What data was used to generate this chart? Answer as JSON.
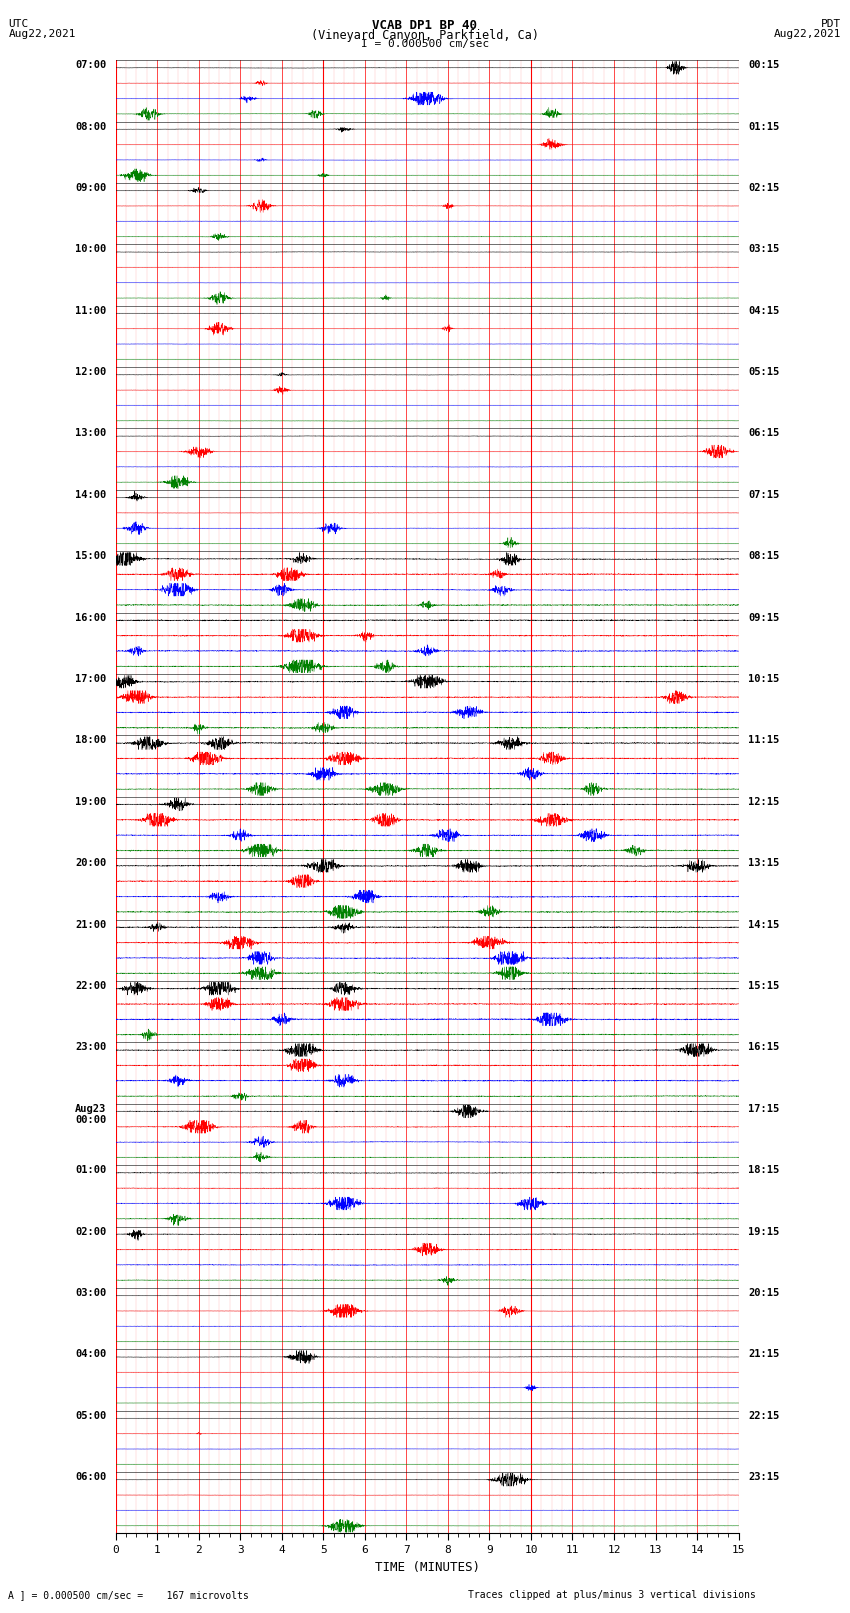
{
  "title_line1": "VCAB DP1 BP 40",
  "title_line2": "(Vineyard Canyon, Parkfield, Ca)",
  "scale_label": "I = 0.000500 cm/sec",
  "left_header_line1": "UTC",
  "left_header_line2": "Aug22,2021",
  "right_header_line1": "PDT",
  "right_header_line2": "Aug22,2021",
  "bottom_label1": "A ] = 0.000500 cm/sec =    167 microvolts",
  "bottom_label2": "Traces clipped at plus/minus 3 vertical divisions",
  "xlabel": "TIME (MINUTES)",
  "bg_color": "#ffffff",
  "trace_colors": [
    "black",
    "red",
    "blue",
    "green"
  ],
  "utc_labels": [
    "07:00",
    "08:00",
    "09:00",
    "10:00",
    "11:00",
    "12:00",
    "13:00",
    "14:00",
    "15:00",
    "16:00",
    "17:00",
    "18:00",
    "19:00",
    "20:00",
    "21:00",
    "22:00",
    "23:00",
    "Aug23\n00:00",
    "01:00",
    "02:00",
    "03:00",
    "04:00",
    "05:00",
    "06:00"
  ],
  "pdt_labels": [
    "00:15",
    "01:15",
    "02:15",
    "03:15",
    "04:15",
    "05:15",
    "06:15",
    "07:15",
    "08:15",
    "09:15",
    "10:15",
    "11:15",
    "12:15",
    "13:15",
    "14:15",
    "15:15",
    "16:15",
    "17:15",
    "18:15",
    "19:15",
    "20:15",
    "21:15",
    "22:15",
    "23:15"
  ],
  "num_hour_rows": 24,
  "traces_per_hour": 4,
  "xmin": 0,
  "xmax": 15,
  "grid_color_major": "#ff0000",
  "grid_color_minor": "#ffaaaa"
}
